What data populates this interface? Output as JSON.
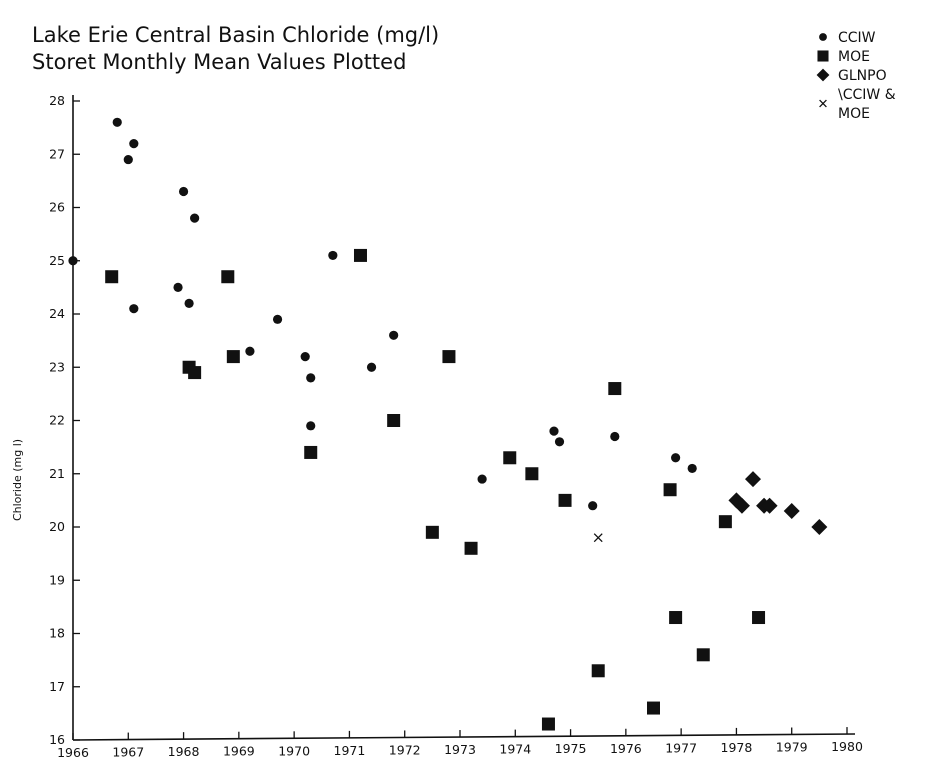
{
  "chart_data": {
    "type": "scatter",
    "title": "Lake Erie Central Basin Chloride (mg/l)",
    "subtitle": "Storet Monthly Mean Values Plotted",
    "ylabel": "Chloride (mg l)",
    "xlabel": "",
    "xlim": [
      1966,
      1980
    ],
    "ylim": [
      16,
      28
    ],
    "x_ticks": [
      "1966",
      "1967",
      "1968",
      "1969",
      "1970",
      "1971",
      "1972",
      "1973",
      "1974",
      "1975",
      "1976",
      "1977",
      "1978",
      "1979",
      "1980"
    ],
    "y_ticks": [
      "16",
      "17",
      "18",
      "19",
      "20",
      "21",
      "22",
      "23",
      "24",
      "25",
      "26",
      "27",
      "28"
    ],
    "grid": false,
    "legend_position": "top-right",
    "colors": {
      "markers": "#111111",
      "axes": "#111111"
    },
    "series": [
      {
        "name": "CCIW",
        "marker": "circle",
        "points": [
          [
            1966.0,
            25.0
          ],
          [
            1966.8,
            27.6
          ],
          [
            1967.0,
            26.9
          ],
          [
            1967.1,
            27.2
          ],
          [
            1967.1,
            24.1
          ],
          [
            1967.9,
            24.5
          ],
          [
            1968.0,
            26.3
          ],
          [
            1968.1,
            24.2
          ],
          [
            1968.2,
            25.8
          ],
          [
            1969.2,
            23.3
          ],
          [
            1969.7,
            23.9
          ],
          [
            1970.2,
            23.2
          ],
          [
            1970.3,
            21.9
          ],
          [
            1970.3,
            22.8
          ],
          [
            1970.7,
            25.1
          ],
          [
            1971.4,
            23.0
          ],
          [
            1971.8,
            23.6
          ],
          [
            1973.4,
            20.9
          ],
          [
            1974.7,
            21.8
          ],
          [
            1974.8,
            21.6
          ],
          [
            1975.4,
            20.4
          ],
          [
            1975.8,
            21.7
          ],
          [
            1976.9,
            21.3
          ],
          [
            1977.2,
            21.1
          ]
        ]
      },
      {
        "name": "MOE",
        "marker": "square",
        "points": [
          [
            1966.7,
            24.7
          ],
          [
            1968.1,
            23.0
          ],
          [
            1968.2,
            22.9
          ],
          [
            1968.8,
            24.7
          ],
          [
            1968.9,
            23.2
          ],
          [
            1970.3,
            21.4
          ],
          [
            1971.2,
            25.1
          ],
          [
            1971.8,
            22.0
          ],
          [
            1972.5,
            19.9
          ],
          [
            1972.8,
            23.2
          ],
          [
            1973.2,
            19.6
          ],
          [
            1973.9,
            21.3
          ],
          [
            1974.3,
            21.0
          ],
          [
            1974.6,
            16.3
          ],
          [
            1974.9,
            20.5
          ],
          [
            1975.5,
            17.3
          ],
          [
            1975.8,
            22.6
          ],
          [
            1976.5,
            16.6
          ],
          [
            1976.8,
            20.7
          ],
          [
            1976.9,
            18.3
          ],
          [
            1977.4,
            17.6
          ],
          [
            1977.8,
            20.1
          ],
          [
            1978.4,
            18.3
          ]
        ]
      },
      {
        "name": "GLNPO",
        "marker": "diamond",
        "points": [
          [
            1978.0,
            20.5
          ],
          [
            1978.1,
            20.4
          ],
          [
            1978.3,
            20.9
          ],
          [
            1978.5,
            20.4
          ],
          [
            1978.6,
            20.4
          ],
          [
            1979.0,
            20.3
          ],
          [
            1979.5,
            20.0
          ]
        ]
      },
      {
        "name": "CCIW & MOE",
        "marker": "x",
        "points": [
          [
            1975.5,
            19.8
          ]
        ]
      }
    ],
    "legend": [
      {
        "marker": "circle",
        "lines": [
          "CCIW"
        ]
      },
      {
        "marker": "square",
        "lines": [
          "MOE"
        ]
      },
      {
        "marker": "diamond",
        "lines": [
          "GLNPO"
        ]
      },
      {
        "marker": "x",
        "lines": [
          "\\CCIW &",
          "MOE"
        ]
      }
    ]
  }
}
